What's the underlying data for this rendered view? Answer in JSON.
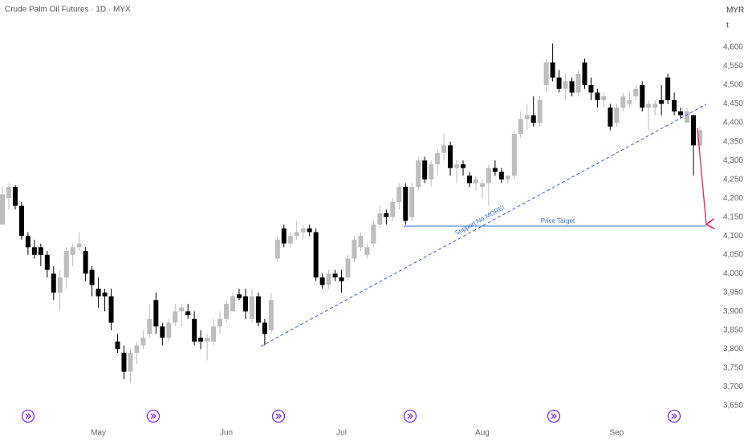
{
  "chart_data": {
    "type": "candlestick",
    "title": "Crude Palm Oil Futures · 1D · MYX",
    "currency": "MYR",
    "unit": "t",
    "up_color": "#bdbdbd",
    "down_color": "#000000",
    "annotations": [
      "Support No MORE!",
      "Price Target"
    ],
    "categories": [
      null,
      null,
      null,
      null,
      null,
      null,
      null,
      null,
      null,
      null,
      null,
      null,
      null,
      null,
      null,
      "May",
      null,
      null,
      null,
      null,
      null,
      null,
      null,
      null,
      null,
      null,
      null,
      null,
      null,
      null,
      null,
      null,
      null,
      null,
      null,
      "Jun",
      null,
      null,
      null,
      null,
      null,
      null,
      null,
      null,
      null,
      null,
      null,
      null,
      null,
      null,
      null,
      null,
      null,
      "Jul",
      null,
      null,
      null,
      null,
      null,
      null,
      null,
      null,
      null,
      null,
      null,
      null,
      null,
      null,
      null,
      null,
      null,
      null,
      null,
      null,
      null,
      "Aug",
      null,
      null,
      null,
      null,
      null,
      null,
      null,
      null,
      null,
      null,
      null,
      null,
      null,
      null,
      null,
      null,
      null,
      null,
      null,
      null,
      "Sep",
      null,
      null,
      null,
      null,
      null,
      null,
      null,
      null,
      null,
      null,
      null,
      null,
      null
    ],
    "open": [
      4130,
      4200,
      4230,
      4180,
      4100,
      4070,
      4070,
      4050,
      4000,
      3950,
      3990,
      4050,
      4070,
      4060,
      4010,
      3960,
      3950,
      3940,
      3820,
      3790,
      3740,
      3790,
      3810,
      3840,
      3930,
      3860,
      3830,
      3870,
      3900,
      3900,
      3880,
      3830,
      3820,
      3820,
      3860,
      3880,
      3900,
      3945,
      3940,
      3880,
      3940,
      3870,
      3850,
      4040,
      4120,
      4080,
      4100,
      4110,
      4120,
      4110,
      3990,
      3970,
      4000,
      3990,
      3990,
      4040,
      4070,
      4050,
      4080,
      4130,
      4160,
      4150,
      4190,
      4230,
      4150,
      4230,
      4300,
      4250,
      4290,
      4320,
      4340,
      4280,
      4290,
      4260,
      4240,
      4230,
      4240,
      4280,
      4270,
      4250,
      4260,
      4370,
      4410,
      4420,
      4400,
      4500,
      4560,
      4520,
      4490,
      4510,
      4480,
      4560,
      4500,
      4480,
      4460,
      4440,
      4400,
      4440,
      4450,
      4470,
      4500,
      4440,
      4440,
      4460,
      4520,
      4460,
      4430,
      4400,
      4420,
      4340
    ],
    "high": [
      4230,
      4240,
      4235,
      4190,
      4110,
      4090,
      4080,
      4060,
      4020,
      4010,
      4070,
      4080,
      4110,
      4070,
      4020,
      3990,
      3960,
      3960,
      3840,
      3810,
      3800,
      3820,
      3850,
      3920,
      3950,
      3870,
      3880,
      3920,
      3920,
      3920,
      3900,
      3850,
      3840,
      3880,
      3900,
      3930,
      3950,
      3960,
      3960,
      3960,
      3950,
      3880,
      3950,
      4100,
      4130,
      4110,
      4140,
      4130,
      4130,
      4120,
      4000,
      4010,
      4010,
      4010,
      4050,
      4100,
      4110,
      4080,
      4140,
      4180,
      4170,
      4200,
      4240,
      4240,
      4240,
      4310,
      4310,
      4300,
      4330,
      4370,
      4350,
      4300,
      4300,
      4270,
      4260,
      4250,
      4290,
      4300,
      4280,
      4260,
      4380,
      4430,
      4450,
      4470,
      4470,
      4570,
      4610,
      4540,
      4530,
      4520,
      4540,
      4570,
      4520,
      4490,
      4480,
      4450,
      4450,
      4480,
      4480,
      4500,
      4510,
      4460,
      4460,
      4500,
      4530,
      4480,
      4440,
      4440,
      4420,
      4390
    ],
    "low": [
      4130,
      4170,
      4170,
      4090,
      4050,
      4040,
      4020,
      3990,
      3930,
      3900,
      3960,
      4020,
      4060,
      3980,
      3940,
      3910,
      3900,
      3850,
      3790,
      3720,
      3710,
      3760,
      3800,
      3830,
      3840,
      3810,
      3820,
      3860,
      3860,
      3880,
      3810,
      3800,
      3770,
      3810,
      3840,
      3870,
      3900,
      3930,
      3880,
      3870,
      3860,
      3810,
      3840,
      4030,
      4070,
      4070,
      4090,
      4090,
      4100,
      3980,
      3960,
      3960,
      3980,
      3950,
      3980,
      4030,
      4060,
      4040,
      4070,
      4120,
      4130,
      4140,
      4170,
      4130,
      4140,
      4220,
      4240,
      4230,
      4260,
      4300,
      4260,
      4240,
      4260,
      4230,
      4220,
      4200,
      4180,
      4260,
      4240,
      4240,
      4250,
      4360,
      4380,
      4390,
      4390,
      4480,
      4510,
      4480,
      4460,
      4470,
      4470,
      4490,
      4460,
      4440,
      4440,
      4380,
      4390,
      4430,
      4440,
      4460,
      4430,
      4380,
      4420,
      4420,
      4450,
      4420,
      4410,
      4400,
      4260,
      4330
    ],
    "close": [
      4210,
      4230,
      4180,
      4100,
      4070,
      4050,
      4050,
      4010,
      3950,
      3990,
      4060,
      4070,
      4080,
      4000,
      3970,
      3940,
      3940,
      3870,
      3800,
      3740,
      3790,
      3810,
      3830,
      3880,
      3860,
      3830,
      3870,
      3900,
      3910,
      3890,
      3820,
      3820,
      3830,
      3860,
      3880,
      3920,
      3940,
      3935,
      3900,
      3940,
      3870,
      3840,
      3930,
      4090,
      4080,
      4100,
      4110,
      4120,
      4110,
      3990,
      3970,
      4000,
      3990,
      3980,
      4040,
      4090,
      4100,
      4070,
      4130,
      4160,
      4150,
      4190,
      4230,
      4140,
      4230,
      4300,
      4250,
      4290,
      4320,
      4340,
      4280,
      4290,
      4280,
      4240,
      4250,
      4240,
      4280,
      4270,
      4250,
      4260,
      4370,
      4410,
      4420,
      4400,
      4460,
      4560,
      4520,
      4490,
      4510,
      4480,
      4530,
      4500,
      4480,
      4460,
      4470,
      4390,
      4440,
      4470,
      4460,
      4490,
      4440,
      4450,
      4450,
      4450,
      4460,
      4430,
      4420,
      4430,
      4340,
      4380
    ],
    "ylim": [
      3600,
      4725
    ],
    "yticks": [
      {
        "value": 3650,
        "label": "3,650"
      },
      {
        "value": 3700,
        "label": "3,700"
      },
      {
        "value": 3750,
        "label": "3,750"
      },
      {
        "value": 3800,
        "label": "3,800"
      },
      {
        "value": 3850,
        "label": "3,850"
      },
      {
        "value": 3900,
        "label": "3,900"
      },
      {
        "value": 3950,
        "label": "3,950"
      },
      {
        "value": 4000,
        "label": "4,000"
      },
      {
        "value": 4050,
        "label": "4,050"
      },
      {
        "value": 4100,
        "label": "4,100"
      },
      {
        "value": 4150,
        "label": "4,150"
      },
      {
        "value": 4200,
        "label": "4,200"
      },
      {
        "value": 4250,
        "label": "4,250"
      },
      {
        "value": 4300,
        "label": "4,300"
      },
      {
        "value": 4350,
        "label": "4,350"
      },
      {
        "value": 4400,
        "label": "4,400"
      },
      {
        "value": 4450,
        "label": "4,450"
      },
      {
        "value": 4500,
        "label": "4,500"
      },
      {
        "value": 4550,
        "label": "4,550"
      },
      {
        "value": 4600,
        "label": "4,600"
      }
    ],
    "grid": false
  }
}
